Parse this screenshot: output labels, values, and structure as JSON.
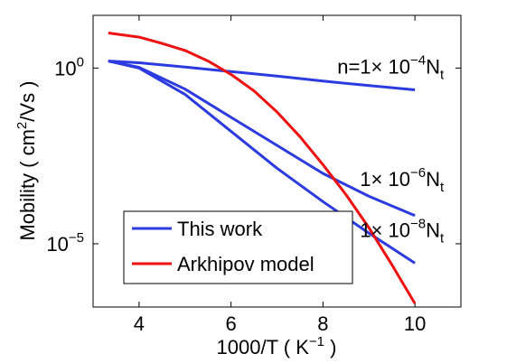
{
  "chart_data": {
    "type": "line",
    "x_scale": "linear",
    "y_scale": "log",
    "xlim": [
      3,
      11
    ],
    "ylim_log10": [
      -6.8,
      1.5
    ],
    "x_ticks": [
      {
        "value": 4,
        "label": "4"
      },
      {
        "value": 6,
        "label": "6"
      },
      {
        "value": 8,
        "label": "8"
      },
      {
        "value": 10,
        "label": "10"
      }
    ],
    "y_ticks": [
      {
        "log10": 0,
        "base": "10",
        "exp": "0"
      },
      {
        "log10": -5,
        "base": "10",
        "exp": "−5"
      }
    ],
    "xlabel": {
      "main": "1000/T ( K",
      "sup": "−1",
      "tail": " )"
    },
    "ylabel": {
      "main": "Mobility ( cm",
      "sup": "2",
      "tail": "/Vs )"
    },
    "series": [
      {
        "name": "This work",
        "color": "#2b3be0",
        "curves": [
          {
            "x": [
              3.33,
              4,
              5,
              6,
              7,
              8,
              9,
              10
            ],
            "log10y": [
              0.2,
              0.15,
              0.03,
              -0.1,
              -0.23,
              -0.37,
              -0.5,
              -0.62
            ]
          },
          {
            "x": [
              3.33,
              4,
              5,
              6,
              7,
              8,
              9,
              10
            ],
            "log10y": [
              0.2,
              0.02,
              -0.6,
              -1.4,
              -2.2,
              -3.0,
              -3.65,
              -4.2
            ]
          },
          {
            "x": [
              3.33,
              4,
              5,
              6,
              7,
              8,
              9,
              10
            ],
            "log10y": [
              0.2,
              0.0,
              -0.75,
              -1.8,
              -2.85,
              -3.8,
              -4.7,
              -5.55
            ]
          }
        ]
      },
      {
        "name": "Arkhipov model",
        "color": "#ee1111",
        "curves": [
          {
            "x": [
              3.33,
              4,
              4.5,
              5,
              5.5,
              6,
              6.5,
              7,
              7.5,
              8,
              8.5,
              9,
              9.5,
              10
            ],
            "log10y": [
              1.0,
              0.88,
              0.7,
              0.5,
              0.2,
              -0.18,
              -0.65,
              -1.25,
              -1.95,
              -2.75,
              -3.6,
              -4.55,
              -5.6,
              -6.7
            ]
          }
        ]
      }
    ],
    "annotations": [
      {
        "x": 10,
        "log10y": 0.05,
        "text_pre": "n=1× 10",
        "exp": "−4",
        "text_post": "N",
        "sub": "t"
      },
      {
        "x": 10,
        "log10y": -3.15,
        "text_pre": "1× 10",
        "exp": "−6",
        "text_post": "N",
        "sub": "t"
      },
      {
        "x": 10,
        "log10y": -4.6,
        "text_pre": "1× 10",
        "exp": "−8",
        "text_post": "N",
        "sub": "t"
      }
    ],
    "legend": {
      "position": "bottom-left",
      "entries": [
        {
          "label": "This work",
          "color": "#2b3be0"
        },
        {
          "label": "Arkhipov model",
          "color": "#ee1111"
        }
      ]
    }
  }
}
